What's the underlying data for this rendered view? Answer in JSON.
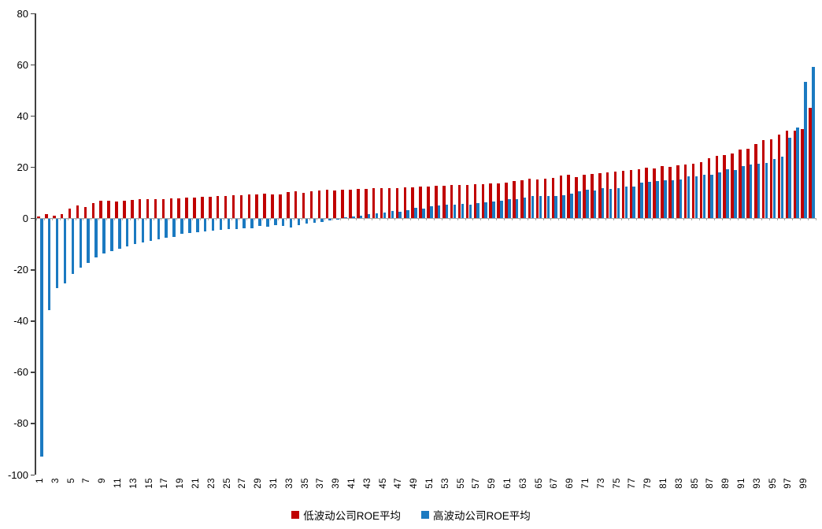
{
  "chart_data": {
    "type": "bar",
    "title": "",
    "xlabel": "",
    "ylabel": "",
    "ylim": [
      -100,
      80
    ],
    "y_ticks": [
      80,
      60,
      40,
      20,
      0,
      -20,
      -40,
      -60,
      -80,
      -100
    ],
    "grid": false,
    "legend_position": "bottom",
    "categories": [
      1,
      2,
      3,
      4,
      5,
      6,
      7,
      8,
      9,
      10,
      11,
      12,
      13,
      14,
      15,
      16,
      17,
      18,
      19,
      20,
      21,
      22,
      23,
      24,
      25,
      26,
      27,
      28,
      29,
      30,
      31,
      32,
      33,
      34,
      35,
      36,
      37,
      38,
      39,
      40,
      41,
      42,
      43,
      44,
      45,
      46,
      47,
      48,
      49,
      50,
      51,
      52,
      53,
      54,
      55,
      56,
      57,
      58,
      59,
      60,
      61,
      62,
      63,
      64,
      65,
      66,
      67,
      68,
      69,
      70,
      71,
      72,
      73,
      74,
      75,
      76,
      77,
      78,
      79,
      80,
      81,
      82,
      83,
      84,
      85,
      86,
      87,
      88,
      89,
      90,
      91,
      92,
      93,
      94,
      95,
      96,
      97,
      98,
      99,
      100
    ],
    "x_tick_labels": [
      "1",
      "3",
      "5",
      "7",
      "9",
      "11",
      "13",
      "15",
      "17",
      "19",
      "21",
      "23",
      "25",
      "27",
      "29",
      "31",
      "33",
      "35",
      "37",
      "39",
      "41",
      "43",
      "45",
      "47",
      "49",
      "51",
      "53",
      "55",
      "57",
      "59",
      "61",
      "63",
      "65",
      "67",
      "69",
      "71",
      "73",
      "75",
      "77",
      "79",
      "81",
      "83",
      "85",
      "87",
      "89",
      "91",
      "93",
      "95",
      "97",
      "99"
    ],
    "series": [
      {
        "name": "低波动公司ROE平均",
        "color": "#c00000",
        "values": [
          0.8,
          1.8,
          1.2,
          1.6,
          3.9,
          5.1,
          4.3,
          5.9,
          6.8,
          7.0,
          6.6,
          7.0,
          7.3,
          7.6,
          7.4,
          7.6,
          7.5,
          7.7,
          7.8,
          8.0,
          8.2,
          8.3,
          8.5,
          8.6,
          8.8,
          9.0,
          9.0,
          9.2,
          9.4,
          9.7,
          9.3,
          9.4,
          10.2,
          10.5,
          10.0,
          10.7,
          10.9,
          11.1,
          10.9,
          11.1,
          11.3,
          11.4,
          11.6,
          11.7,
          11.8,
          11.7,
          11.9,
          12.0,
          12.2,
          12.3,
          12.5,
          12.6,
          12.8,
          12.9,
          13.0,
          13.1,
          13.2,
          13.4,
          13.5,
          13.7,
          14.0,
          14.5,
          14.8,
          15.6,
          15.2,
          15.4,
          15.8,
          16.6,
          17.0,
          16.2,
          16.9,
          17.2,
          17.6,
          18.0,
          18.2,
          18.5,
          18.9,
          19.3,
          19.9,
          19.5,
          20.3,
          20.1,
          20.7,
          21.1,
          21.4,
          21.9,
          23.5,
          24.5,
          24.7,
          25.2,
          26.9,
          27.3,
          29.1,
          30.4,
          31.0,
          32.7,
          34.1,
          34.3,
          35.0,
          43.0
        ]
      },
      {
        "name": "高波动公司ROE平均",
        "color": "#1b7ac1",
        "values": [
          -92.5,
          -35.5,
          -27.0,
          -25.0,
          -21.5,
          -19.0,
          -17.0,
          -15.0,
          -13.5,
          -12.5,
          -11.5,
          -10.5,
          -9.6,
          -9.0,
          -8.4,
          -7.8,
          -7.3,
          -7.0,
          -5.8,
          -5.5,
          -5.2,
          -4.9,
          -4.6,
          -4.3,
          -4.0,
          -3.8,
          -3.6,
          -3.4,
          -2.5,
          -2.9,
          -2.3,
          -2.7,
          -3.2,
          -2.2,
          -1.6,
          -1.4,
          -1.1,
          -0.6,
          -0.2,
          0.3,
          0.8,
          1.2,
          1.6,
          2.0,
          2.3,
          2.8,
          2.6,
          3.2,
          4.0,
          3.9,
          4.6,
          4.9,
          5.3,
          5.5,
          5.7,
          5.3,
          5.9,
          6.2,
          6.5,
          7.0,
          7.6,
          7.6,
          8.1,
          8.6,
          8.8,
          8.6,
          8.6,
          9.1,
          9.6,
          10.7,
          11.2,
          11.0,
          11.7,
          11.5,
          11.9,
          12.5,
          12.3,
          13.9,
          14.2,
          14.5,
          14.8,
          15.0,
          15.3,
          16.3,
          16.3,
          17.0,
          17.0,
          17.8,
          19.3,
          19.0,
          20.4,
          20.9,
          21.4,
          21.5,
          23.2,
          24.2,
          31.4,
          35.5,
          53.4,
          59.1
        ]
      }
    ]
  },
  "legend": {
    "items": [
      {
        "label": "低波动公司ROE平均",
        "color": "#c00000"
      },
      {
        "label": "高波动公司ROE平均",
        "color": "#1b7ac1"
      }
    ]
  },
  "axis_colors": {
    "axis_line": "#404040",
    "zero_line": "#a6a6a6"
  }
}
